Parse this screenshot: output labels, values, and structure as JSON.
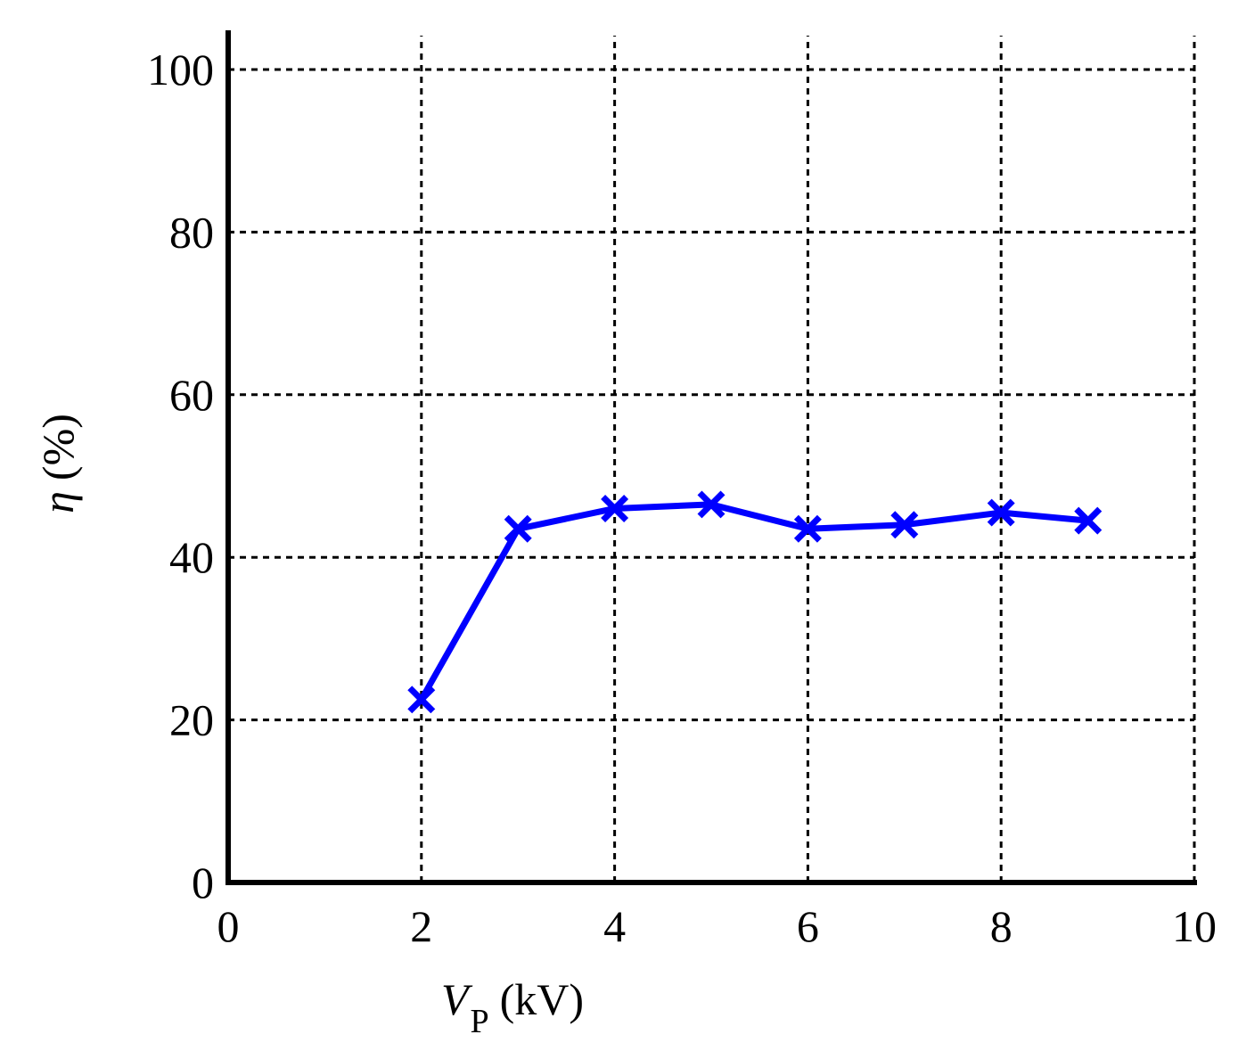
{
  "chart_data": {
    "type": "line",
    "xlabel_symbol": "V",
    "xlabel_subscript": "P",
    "xlabel_unit": "(kV)",
    "ylabel_symbol": "η",
    "ylabel_unit": "(%)",
    "xlim": [
      0,
      10
    ],
    "ylim": [
      0,
      100
    ],
    "xticks": [
      0,
      2,
      4,
      6,
      8,
      10
    ],
    "yticks": [
      0,
      20,
      40,
      60,
      80,
      100
    ],
    "grid": true,
    "series": [
      {
        "color": "#0000ff",
        "marker": "x",
        "x": [
          2,
          3,
          4,
          5,
          6,
          7,
          8,
          8.9
        ],
        "y": [
          22.5,
          43.5,
          46,
          46.5,
          43.5,
          44,
          45.5,
          44.5
        ]
      }
    ]
  }
}
